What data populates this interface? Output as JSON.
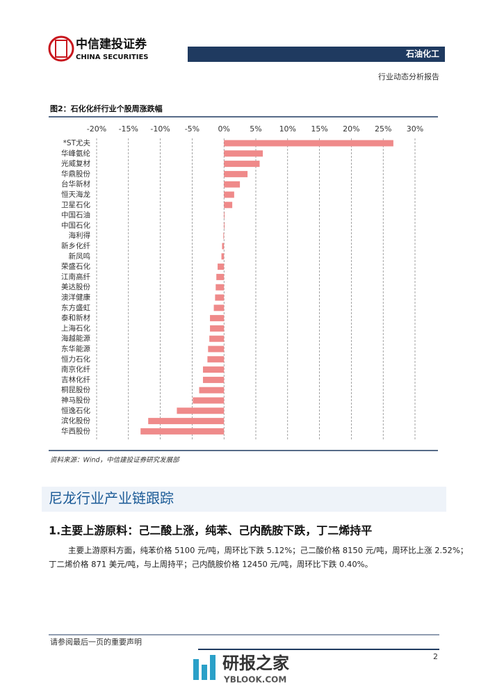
{
  "header": {
    "company": "中信建投证券",
    "company_en": "CHINA SECURITIES",
    "sector": "石油化工",
    "report_type": "行业动态分析报告"
  },
  "figure": {
    "title": "图2：石化化纤行业个股周涨跌幅",
    "source": "资料来源：Wind，中信建投证券研究发展部"
  },
  "chart_data": {
    "type": "bar",
    "orientation": "horizontal",
    "color": "#ef8a8a",
    "grid": true,
    "categories": [
      "*ST尤夫",
      "华峰氨纶",
      "光威复材",
      "华鼎股份",
      "台华新材",
      "恒天海龙",
      "卫星石化",
      "中国石油",
      "中国石化",
      "海利得",
      "新乡化纤",
      "新凤鸣",
      "荣盛石化",
      "江南高纤",
      "美达股份",
      "澳洋健康",
      "东方盛虹",
      "泰和新材",
      "上海石化",
      "海越能源",
      "东华能源",
      "恒力石化",
      "南京化纤",
      "吉林化纤",
      "桐昆股份",
      "神马股份",
      "恒逸石化",
      "滨化股份",
      "华西股份"
    ],
    "values": [
      26.6,
      6.1,
      5.6,
      3.7,
      2.5,
      1.6,
      1.3,
      0.1,
      0.1,
      -0.1,
      -0.3,
      -0.4,
      -1.0,
      -1.2,
      -1.3,
      -1.4,
      -1.6,
      -2.2,
      -2.2,
      -2.3,
      -2.5,
      -2.6,
      -3.3,
      -3.3,
      -3.9,
      -4.9,
      -7.4,
      -11.9,
      -13.1
    ],
    "xlim": [
      -20,
      30
    ],
    "xticks": [
      {
        "value": -20,
        "label": "-20%"
      },
      {
        "value": -15,
        "label": "-15%"
      },
      {
        "value": -10,
        "label": "-10%"
      },
      {
        "value": -5,
        "label": "-5%"
      },
      {
        "value": 0,
        "label": "0%"
      },
      {
        "value": 5,
        "label": "5%"
      },
      {
        "value": 10,
        "label": "10%"
      },
      {
        "value": 15,
        "label": "15%"
      },
      {
        "value": 20,
        "label": "20%"
      },
      {
        "value": 25,
        "label": "25%"
      },
      {
        "value": 30,
        "label": "30%"
      }
    ]
  },
  "section": {
    "heading": "尼龙行业产业链跟踪",
    "subheading": "1.主要上游原料：己二酸上涨，纯苯、己内酰胺下跌，丁二烯持平",
    "paragraph": [
      "主要上游原料方面，纯苯价格 5100 元/吨，周环比下跌 5.12%；己二酸价格 8150 元/吨，周环比上涨 2.52%；",
      "丁二烯价格 871 美元/吨，与上周持平；己内酰胺价格 12450 元/吨，周环比下跌 0.40%。"
    ]
  },
  "footer": {
    "disclaimer": "请参阅最后一页的重要声明",
    "page": "2"
  },
  "watermark": {
    "name": "研报之家",
    "site": "YBLOOK.COM"
  }
}
